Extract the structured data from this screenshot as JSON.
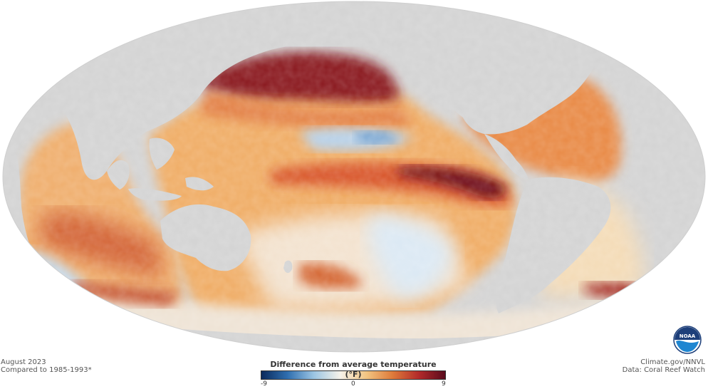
{
  "map": {
    "ocean_colors": {
      "neutral": "#f4efe6",
      "light_warm": "#f5c98a",
      "warm": "#eda25c",
      "hot": "#c94a2a",
      "very_hot": "#7a1020",
      "cool": "#d7e6f2",
      "cooler": "#a9c7e3",
      "land": "#d4d4d4"
    }
  },
  "footer": {
    "left_line1": "August 2023",
    "left_line2": "Compared to 1985-1993*",
    "right_line1": "Climate.gov/NNVL",
    "right_line2": "Data: Coral Reef Watch"
  },
  "legend": {
    "title": "Difference from average temperature (°F)",
    "min_label": "-9",
    "mid_label": "0",
    "max_label": "9",
    "min": -9,
    "max": 9,
    "colors": [
      "#0b2a5c",
      "#2f6fb0",
      "#9cc5e3",
      "#f6f2ea",
      "#f2c582",
      "#de7a3a",
      "#b22a2a",
      "#5a0b1d"
    ]
  },
  "logo": {
    "text": "NOAA",
    "icon": "noaa-logo-icon"
  }
}
